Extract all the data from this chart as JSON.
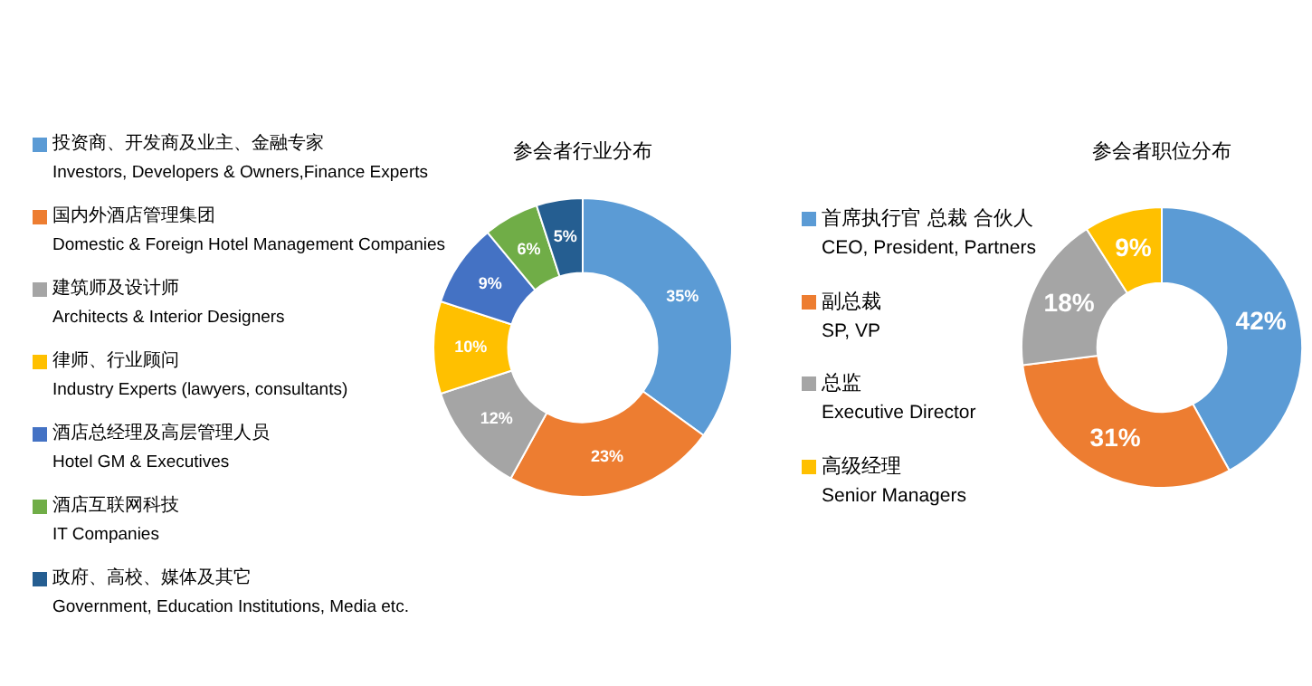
{
  "chart_data": [
    {
      "type": "donut",
      "title": "参会者行业分布",
      "legend": "left",
      "categories": [
        "投资商、开发商及业主、金融专家\nInvestors, Developers & Owners,Finance Experts",
        "国内外酒店管理集团\nDomestic & Foreign Hotel Management Companies",
        "建筑师及设计师\nArchitects & Interior Designers",
        "律师、行业顾问\nIndustry Experts (lawyers, consultants)",
        "酒店总经理及高层管理人员\nHotel GM & Executives",
        "酒店互联网科技\nIT Companies",
        "政府、高校、媒体及其它\nGovernment, Education Institutions, Media etc."
      ],
      "values": [
        35,
        23,
        12,
        10,
        9,
        6,
        5
      ],
      "value_labels": [
        "35%",
        "23%",
        "12%",
        "10%",
        "9%",
        "6%",
        "5%"
      ],
      "colors": [
        "#5b9bd5",
        "#ed7d31",
        "#a5a5a5",
        "#ffc000",
        "#4472c4",
        "#70ad47",
        "#255e91"
      ]
    },
    {
      "type": "donut",
      "title": "参会者职位分布",
      "legend": "left",
      "categories": [
        "首席执行官 总裁 合伙人\nCEO, President, Partners",
        "副总裁\nSP, VP",
        "总监\nExecutive Director",
        "高级经理\nSenior Managers"
      ],
      "values": [
        42,
        31,
        18,
        9
      ],
      "value_labels": [
        "42%",
        "31%",
        "18%",
        "9%"
      ],
      "colors": [
        "#5b9bd5",
        "#ed7d31",
        "#a5a5a5",
        "#ffc000"
      ]
    }
  ]
}
